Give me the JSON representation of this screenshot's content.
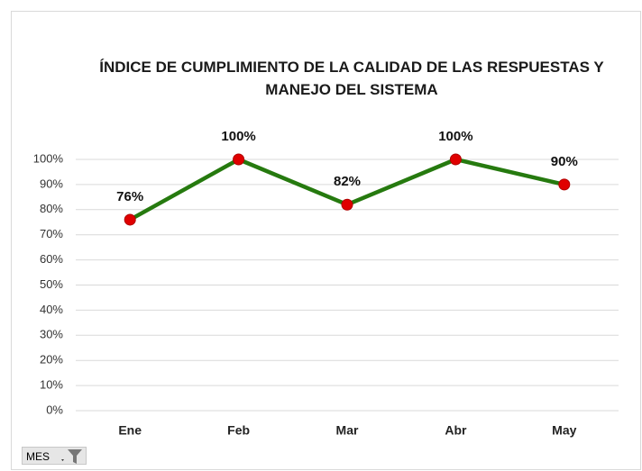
{
  "chart_data": {
    "type": "line",
    "title": "ÍNDICE DE CUMPLIMIENTO DE LA CALIDAD DE LAS RESPUESTAS Y MANEJO DEL SISTEMA",
    "categories": [
      "Ene",
      "Feb",
      "Mar",
      "Abr",
      "May"
    ],
    "values": [
      76,
      100,
      82,
      100,
      90
    ],
    "value_labels": [
      "76%",
      "100%",
      "82%",
      "100%",
      "90%"
    ],
    "color": "#267a0f",
    "marker_color": "#e00000",
    "ylim": [
      0,
      100
    ],
    "yticks": [
      {
        "value": 0,
        "label": "0%"
      },
      {
        "value": 10,
        "label": "10%"
      },
      {
        "value": 20,
        "label": "20%"
      },
      {
        "value": 30,
        "label": "30%"
      },
      {
        "value": 40,
        "label": "40%"
      },
      {
        "value": 50,
        "label": "50%"
      },
      {
        "value": 60,
        "label": "60%"
      },
      {
        "value": 70,
        "label": "70%"
      },
      {
        "value": 80,
        "label": "80%"
      },
      {
        "value": 90,
        "label": "90%"
      },
      {
        "value": 100,
        "label": "100%"
      }
    ],
    "grid": true,
    "field_button": "MES"
  }
}
